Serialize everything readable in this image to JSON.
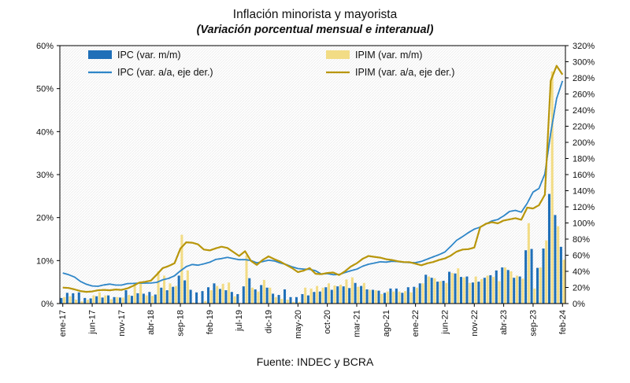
{
  "title": "Inflación minorista y mayorista",
  "subtitle": "(Variación porcentual mensual e interanual)",
  "source": "Fuente: INDEC y BCRA",
  "colors": {
    "ipc_bar": "#1F6FB8",
    "ipc_line": "#2E86C8",
    "ipim_bar": "#F2DC85",
    "ipim_line": "#B8960B",
    "axis": "#000000",
    "hatch": "#e7e7e7"
  },
  "legend": [
    {
      "label": "IPC (var. m/m)",
      "type": "bar",
      "color": "#1F6FB8"
    },
    {
      "label": "IPC (var. a/a, eje der.)",
      "type": "line",
      "color": "#2E86C8"
    },
    {
      "label": "IPIM (var. m/m)",
      "type": "bar",
      "color": "#F2DC85"
    },
    {
      "label": "IPIM (var. a/a, eje der.)",
      "type": "line",
      "color": "#B8960B"
    }
  ],
  "chart_data": {
    "type": "combo-bar-line",
    "title": "Inflación minorista y mayorista",
    "subtitle": "(Variación porcentual mensual e interanual)",
    "left_axis": {
      "min": 0,
      "max": 60,
      "step": 10,
      "format": "%"
    },
    "right_axis": {
      "min": 0,
      "max": 320,
      "step": 20,
      "format": "%"
    },
    "x_tick_labels": [
      "ene-17",
      "jun-17",
      "nov-17",
      "abr-18",
      "sep-18",
      "feb-19",
      "jul-19",
      "dic-19",
      "may-20",
      "oct-20",
      "mar-21",
      "ago-21",
      "ene-22",
      "jun-22",
      "nov-22",
      "abr-23",
      "sep-23",
      "feb-24"
    ],
    "x": [
      "ene-17",
      "feb-17",
      "mar-17",
      "abr-17",
      "may-17",
      "jun-17",
      "jul-17",
      "ago-17",
      "sep-17",
      "oct-17",
      "nov-17",
      "dic-17",
      "ene-18",
      "feb-18",
      "mar-18",
      "abr-18",
      "may-18",
      "jun-18",
      "jul-18",
      "ago-18",
      "sep-18",
      "oct-18",
      "nov-18",
      "dic-18",
      "ene-19",
      "feb-19",
      "mar-19",
      "abr-19",
      "may-19",
      "jun-19",
      "jul-19",
      "ago-19",
      "sep-19",
      "oct-19",
      "nov-19",
      "dic-19",
      "ene-20",
      "feb-20",
      "mar-20",
      "abr-20",
      "may-20",
      "jun-20",
      "jul-20",
      "ago-20",
      "sep-20",
      "oct-20",
      "nov-20",
      "dic-20",
      "ene-21",
      "feb-21",
      "mar-21",
      "abr-21",
      "may-21",
      "jun-21",
      "jul-21",
      "ago-21",
      "sep-21",
      "oct-21",
      "nov-21",
      "dic-21",
      "ene-22",
      "feb-22",
      "mar-22",
      "abr-22",
      "may-22",
      "jun-22",
      "jul-22",
      "ago-22",
      "sep-22",
      "oct-22",
      "nov-22",
      "dic-22",
      "ene-23",
      "feb-23",
      "mar-23",
      "abr-23",
      "may-23",
      "jun-23",
      "jul-23",
      "ago-23",
      "sep-23",
      "oct-23",
      "nov-23",
      "dic-23",
      "ene-24",
      "feb-24"
    ],
    "series": [
      {
        "name": "IPC (var. m/m)",
        "type": "bar",
        "axis": "left",
        "color": "#1F6FB8",
        "values": [
          1.3,
          2.5,
          2.4,
          2.6,
          1.3,
          1.2,
          1.7,
          1.4,
          1.9,
          1.5,
          1.4,
          3.1,
          1.8,
          2.4,
          2.3,
          2.7,
          2.1,
          3.7,
          3.1,
          3.9,
          6.5,
          5.4,
          3.2,
          2.6,
          2.9,
          3.8,
          4.7,
          3.4,
          3.1,
          2.7,
          2.2,
          4.0,
          5.9,
          3.3,
          4.3,
          3.7,
          2.3,
          2.0,
          3.3,
          1.5,
          1.5,
          2.2,
          1.9,
          2.7,
          2.8,
          3.8,
          3.2,
          4.0,
          4.0,
          3.6,
          4.8,
          4.1,
          3.3,
          3.2,
          3.0,
          2.5,
          3.5,
          3.5,
          2.5,
          3.8,
          3.9,
          4.7,
          6.7,
          6.0,
          5.1,
          5.3,
          7.4,
          7.0,
          6.2,
          6.3,
          4.9,
          5.1,
          6.0,
          6.6,
          7.7,
          8.4,
          7.8,
          6.0,
          6.3,
          12.4,
          12.7,
          8.3,
          12.8,
          25.5,
          20.6,
          13.2
        ]
      },
      {
        "name": "IPIM (var. m/m)",
        "type": "bar",
        "axis": "left",
        "color": "#F2DC85",
        "values": [
          1.5,
          1.7,
          0.9,
          0.5,
          0.9,
          1.9,
          2.6,
          1.9,
          1.0,
          1.5,
          1.4,
          2.0,
          4.6,
          4.8,
          1.9,
          1.8,
          7.5,
          6.5,
          4.7,
          4.1,
          16.0,
          7.7,
          0.2,
          0.1,
          0.6,
          3.1,
          4.1,
          4.6,
          4.9,
          1.7,
          0.1,
          11.2,
          3.7,
          2.8,
          5.5,
          3.7,
          1.5,
          1.1,
          0.9,
          0.4,
          0.4,
          3.7,
          3.5,
          4.1,
          3.7,
          4.7,
          4.2,
          4.4,
          5.6,
          6.1,
          3.9,
          4.8,
          3.2,
          3.1,
          2.2,
          2.8,
          2.8,
          2.8,
          2.9,
          2.6,
          3.7,
          4.7,
          6.3,
          5.9,
          5.2,
          4.8,
          7.1,
          8.2,
          6.1,
          4.8,
          6.3,
          5.7,
          6.5,
          6.2,
          5.2,
          8.4,
          7.5,
          6.5,
          5.8,
          18.7,
          3.5,
          8.4,
          14.7,
          54.0,
          18.0,
          10.2
        ]
      },
      {
        "name": "IPC (var. a/a, eje der.)",
        "type": "line",
        "axis": "right",
        "color": "#2E86C8",
        "width": 1.8,
        "values": [
          38.0,
          35.8,
          32.9,
          27.5,
          24.0,
          21.9,
          21.5,
          23.1,
          24.2,
          22.9,
          22.9,
          24.8,
          25.0,
          25.4,
          25.4,
          25.5,
          26.3,
          29.5,
          31.2,
          34.4,
          40.5,
          45.9,
          48.5,
          47.6,
          49.3,
          51.3,
          54.7,
          55.8,
          57.3,
          55.8,
          54.4,
          54.5,
          53.5,
          50.5,
          52.1,
          53.8,
          52.9,
          50.3,
          48.4,
          45.6,
          43.4,
          42.8,
          42.4,
          40.7,
          36.6,
          37.2,
          35.8,
          36.1,
          38.5,
          40.7,
          42.6,
          46.3,
          48.8,
          50.2,
          51.8,
          51.4,
          52.5,
          52.1,
          51.2,
          50.9,
          50.7,
          52.3,
          55.1,
          58.0,
          60.7,
          64.0,
          71.0,
          78.5,
          83.0,
          88.0,
          92.4,
          94.8,
          98.8,
          102.5,
          104.3,
          108.8,
          114.2,
          115.6,
          113.4,
          124.4,
          138.3,
          142.7,
          160.9,
          211.4,
          254.2,
          276.2
        ]
      },
      {
        "name": "IPIM (var. a/a, eje der.)",
        "type": "line",
        "axis": "right",
        "color": "#B8960B",
        "width": 2.2,
        "values": [
          19.8,
          19.3,
          17.6,
          15.5,
          14.5,
          15.0,
          16.5,
          17.0,
          16.5,
          17.5,
          17.0,
          18.8,
          22.0,
          26.0,
          27.0,
          28.5,
          36.0,
          44.0,
          46.5,
          50.0,
          68.0,
          76.0,
          75.5,
          73.5,
          67.0,
          66.0,
          68.5,
          70.5,
          69.0,
          64.0,
          59.0,
          65.0,
          53.0,
          48.0,
          54.0,
          58.5,
          55.0,
          52.0,
          48.0,
          44.0,
          39.0,
          41.0,
          44.0,
          37.0,
          36.5,
          38.0,
          38.5,
          35.4,
          40.0,
          46.0,
          50.0,
          55.5,
          59.0,
          58.0,
          57.0,
          55.0,
          54.0,
          52.5,
          51.5,
          51.3,
          49.5,
          47.5,
          50.0,
          51.5,
          54.0,
          56.0,
          59.5,
          64.5,
          67.0,
          67.5,
          69.5,
          94.8,
          99.0,
          101.0,
          99.5,
          103.0,
          104.5,
          106.0,
          104.0,
          119.0,
          118.0,
          122.0,
          135.0,
          276.4,
          295.0,
          284.0
        ]
      }
    ]
  }
}
